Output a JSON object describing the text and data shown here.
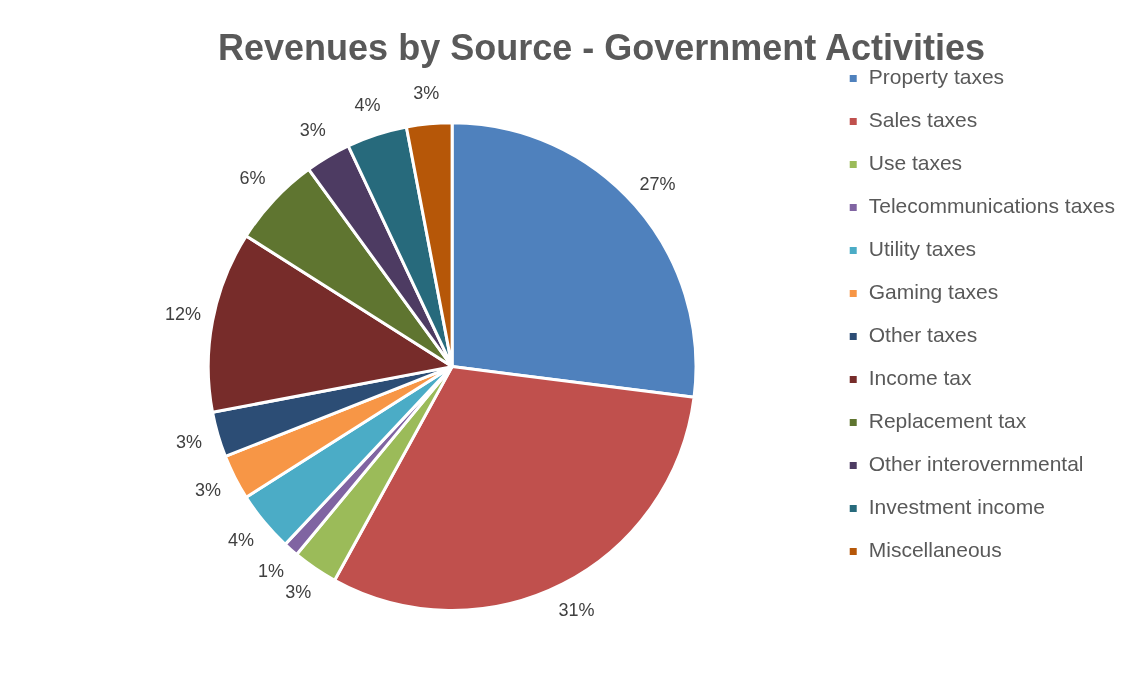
{
  "chart_data": {
    "type": "pie",
    "title": "Revenues by Source - Government Activities",
    "categories": [
      "Property taxes",
      "Sales taxes",
      "Use taxes",
      "Telecommunications taxes",
      "Utility taxes",
      "Gaming taxes",
      "Other taxes",
      "Income tax",
      "Replacement tax",
      "Other interovernmental",
      "Investment income",
      "Miscellaneous"
    ],
    "values": [
      27,
      31,
      3,
      1,
      4,
      3,
      3,
      12,
      6,
      3,
      4,
      3
    ],
    "colors": [
      "#4f81bd",
      "#c0504d",
      "#9bbb59",
      "#8064a2",
      "#4bacc6",
      "#f79646",
      "#2c4d75",
      "#772c2a",
      "#5f7530",
      "#4d3b62",
      "#276a7c",
      "#b65708"
    ],
    "value_labels": [
      "27%",
      "31%",
      "3%",
      "1%",
      "4%",
      "3%",
      "3%",
      "12%",
      "6%",
      "3%",
      "4%",
      "3%"
    ],
    "legend": "right"
  }
}
